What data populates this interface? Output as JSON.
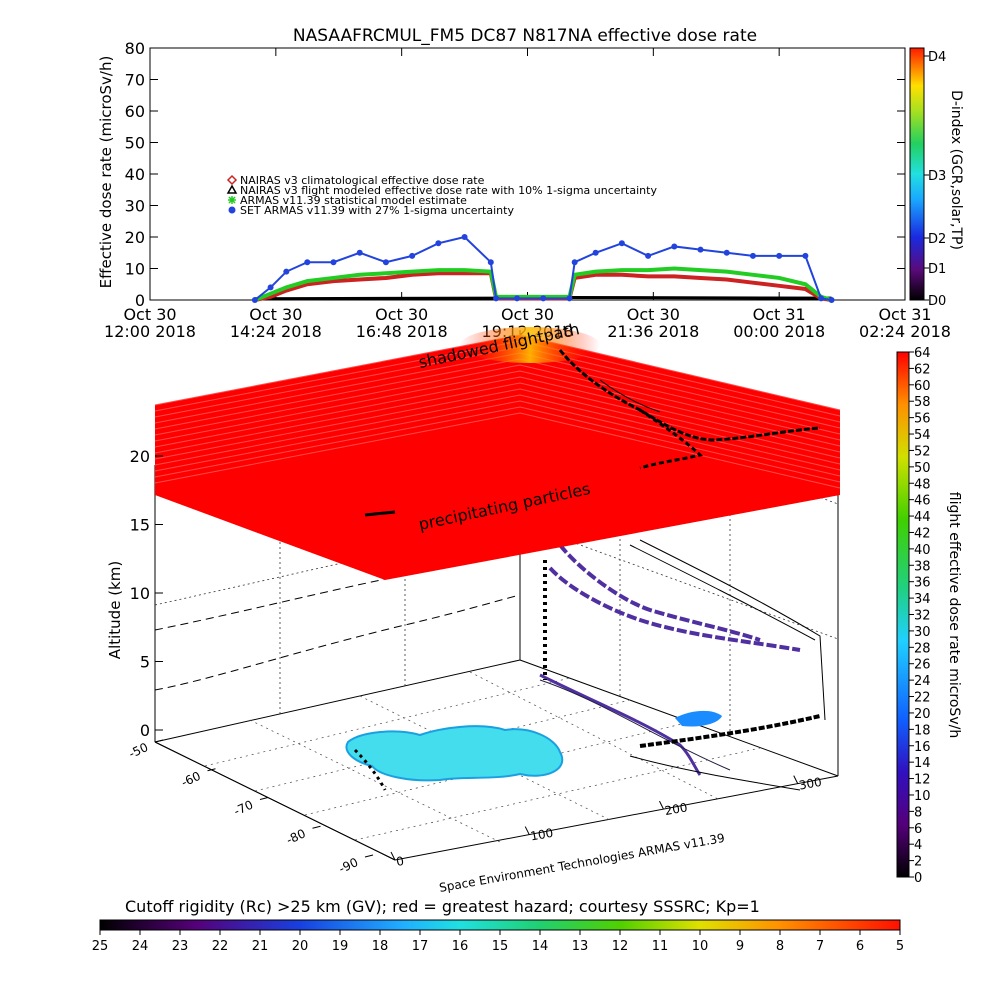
{
  "chart_data": [
    {
      "type": "line",
      "title": "NASAAFRCMUL_FM5 DC87 N817NA effective dose rate",
      "ylabel": "Effective dose rate (microSv/h)",
      "ylim": [
        0,
        80
      ],
      "yticks": [
        "0",
        "10",
        "20",
        "30",
        "40",
        "50",
        "60",
        "70",
        "80"
      ],
      "xticks": [
        {
          "date": "Oct 30",
          "time": "12:00",
          "year": "2018"
        },
        {
          "date": "Oct 30",
          "time": "14:24",
          "year": "2018"
        },
        {
          "date": "Oct 30",
          "time": "16:48",
          "year": "2018"
        },
        {
          "date": "Oct 30",
          "time": "19:12",
          "year": "2018"
        },
        {
          "date": "Oct 30",
          "time": "21:36",
          "year": "2018"
        },
        {
          "date": "Oct 31",
          "time": "00:00",
          "year": "2018"
        },
        {
          "date": "Oct 31",
          "time": "02:24",
          "year": "2018"
        }
      ],
      "legend": [
        {
          "label": "NAIRAS v3 climatological effective dose rate",
          "color": "#cc2222",
          "marker": "diamond"
        },
        {
          "label": "NAIRAS v3 flight modeled effective dose rate with 10% 1-sigma uncertainty",
          "color": "#000000",
          "marker": "triangle"
        },
        {
          "label": "ARMAS v11.39 statistical model estimate",
          "color": "#22cc22",
          "marker": "asterisk"
        },
        {
          "label": "SET ARMAS v11.39 with 27% 1-sigma uncertainty",
          "color": "#2244dd",
          "marker": "circle"
        }
      ],
      "x_hours": [
        14.0,
        14.3,
        14.6,
        15.0,
        15.5,
        16.0,
        16.5,
        17.0,
        17.5,
        18.0,
        18.5,
        18.6,
        19.0,
        19.5,
        20.0,
        20.1,
        20.5,
        21.0,
        21.5,
        22.0,
        22.5,
        23.0,
        23.5,
        24.0,
        24.5,
        24.8,
        25.0
      ],
      "series": [
        {
          "name": "NAIRAS v3 climatological effective dose rate",
          "values": [
            0,
            1,
            3,
            5,
            6,
            6.5,
            7,
            8,
            8.5,
            8.5,
            8.5,
            0.5,
            0.5,
            0.5,
            0.5,
            7,
            8,
            8,
            7.5,
            7.5,
            7,
            6.5,
            5.5,
            4.5,
            3.5,
            0.5,
            0
          ]
        },
        {
          "name": "ARMAS v11.39 statistical model estimate",
          "values": [
            0,
            2,
            4,
            6,
            7,
            8,
            8.5,
            9,
            9.5,
            9.5,
            9,
            1,
            1,
            1,
            1,
            8,
            9,
            9.5,
            9.5,
            10,
            9.5,
            9,
            8,
            7,
            5,
            1,
            0
          ]
        },
        {
          "name": "SET ARMAS v11.39 with 27% 1-sigma uncertainty",
          "values": [
            0,
            4,
            9,
            12,
            12,
            15,
            12,
            14,
            18,
            20,
            12,
            0.5,
            0.5,
            0.5,
            0.5,
            12,
            15,
            18,
            14,
            17,
            16,
            15,
            14,
            14,
            14,
            0.5,
            0
          ]
        }
      ],
      "colorbar": {
        "label": "D-index (GCR,solar,TP)",
        "ticks": [
          "D0",
          "D1",
          "D2",
          "D3",
          "D4"
        ]
      }
    },
    {
      "type": "scatter",
      "ylabel": "Altitude (km)",
      "zticks": [
        "0",
        "5",
        "10",
        "15",
        "20"
      ],
      "lat_ticks": [
        "-50",
        "-60",
        "-70",
        "-80",
        "-90"
      ],
      "lon_ticks": [
        "0",
        "100",
        "200",
        "300"
      ],
      "annotations": [
        "shadowed flightpath",
        "precipitating particles"
      ],
      "credit": "Space Environment Technologies ARMAS v11.39",
      "colorbar": {
        "label": "flight effective dose rate microSv/h",
        "range": [
          0,
          64
        ],
        "ticks": [
          "0",
          "2",
          "4",
          "6",
          "8",
          "10",
          "12",
          "14",
          "16",
          "18",
          "20",
          "22",
          "24",
          "26",
          "28",
          "30",
          "32",
          "34",
          "36",
          "38",
          "40",
          "42",
          "44",
          "46",
          "48",
          "50",
          "52",
          "54",
          "56",
          "58",
          "60",
          "62",
          "64"
        ]
      },
      "rc_colorbar": {
        "title": "Cutoff rigidity (Rc) >25 km (GV); red = greatest hazard; courtesy SSSRC; Kp=1",
        "ticks": [
          "25",
          "24",
          "23",
          "22",
          "21",
          "20",
          "19",
          "18",
          "17",
          "16",
          "15",
          "14",
          "13",
          "12",
          "11",
          "10",
          "9",
          "8",
          "7",
          "6",
          "5"
        ]
      }
    }
  ]
}
